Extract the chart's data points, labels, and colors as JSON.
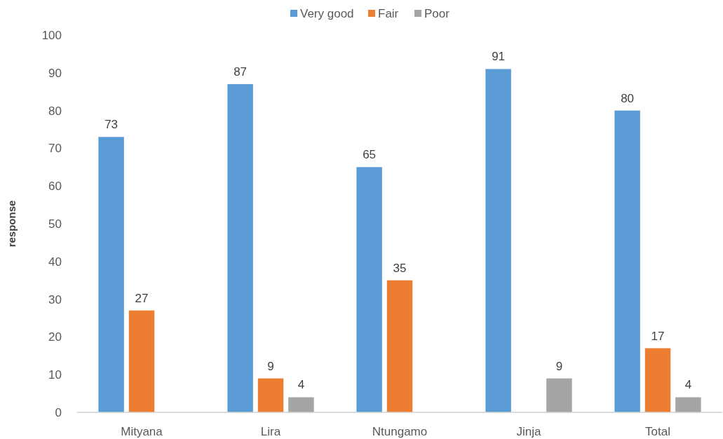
{
  "chart_data": {
    "type": "bar",
    "ylabel": "response",
    "categories": [
      "Mityana",
      "Lira",
      "Ntungamo",
      "Jinja",
      "Total"
    ],
    "series": [
      {
        "name": "Very good",
        "color": "#5b9bd5",
        "values": [
          73,
          87,
          65,
          91,
          80
        ]
      },
      {
        "name": "Fair",
        "color": "#ed7d31",
        "values": [
          27,
          9,
          35,
          null,
          17
        ]
      },
      {
        "name": "Poor",
        "color": "#a5a5a5",
        "values": [
          null,
          4,
          null,
          9,
          4
        ]
      }
    ],
    "ylim": [
      0,
      100
    ],
    "yticks": [
      0,
      10,
      20,
      30,
      40,
      50,
      60,
      70,
      80,
      90,
      100
    ],
    "legend": "top",
    "data_labels": true
  }
}
